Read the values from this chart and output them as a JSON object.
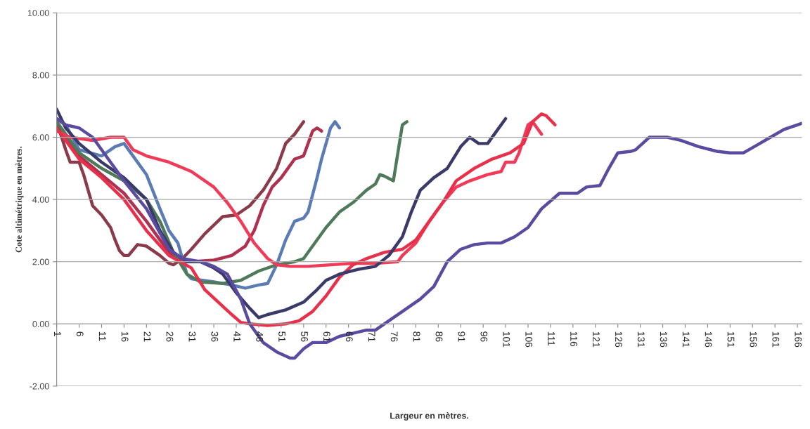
{
  "chart_data": {
    "type": "line",
    "xlabel": "Largeur en mètres.",
    "ylabel": "Cote altimétrique en mètres.",
    "xlim": [
      1,
      167
    ],
    "xticks": [
      1,
      6,
      11,
      16,
      21,
      26,
      31,
      36,
      41,
      46,
      51,
      56,
      61,
      66,
      71,
      76,
      81,
      86,
      91,
      96,
      101,
      106,
      111,
      116,
      121,
      126,
      131,
      136,
      141,
      146,
      151,
      156,
      161,
      166
    ],
    "ylim": [
      -2,
      10
    ],
    "yticks": [
      {
        "value": -2,
        "label": "-2.00"
      },
      {
        "value": 0,
        "label": "0.00"
      },
      {
        "value": 2,
        "label": "2.00"
      },
      {
        "value": 4,
        "label": "4.00"
      },
      {
        "value": 6,
        "label": "6.00"
      },
      {
        "value": 8,
        "label": "8.00"
      },
      {
        "value": 10,
        "label": "10.00"
      }
    ],
    "grid": "y",
    "legend": false,
    "series": [
      {
        "color": "#8b3a4a",
        "x": [
          1,
          3,
          4,
          6,
          7,
          9,
          11,
          13,
          14,
          15,
          16,
          17,
          19,
          21,
          24,
          26,
          27,
          29,
          31,
          34,
          38,
          41,
          44,
          47,
          50,
          52,
          54,
          56
        ],
        "values": [
          6.5,
          5.6,
          5.2,
          5.2,
          4.8,
          3.8,
          3.5,
          3.1,
          2.7,
          2.35,
          2.2,
          2.2,
          2.55,
          2.5,
          2.2,
          1.95,
          1.9,
          2.1,
          2.4,
          2.9,
          3.45,
          3.5,
          3.8,
          4.3,
          5.0,
          5.8,
          6.1,
          6.5
        ]
      },
      {
        "color": "#b03050",
        "x": [
          1,
          3,
          6,
          11,
          16,
          21,
          26,
          29,
          31,
          36,
          40,
          43,
          45,
          47,
          49,
          51,
          54,
          56,
          58,
          59,
          60
        ],
        "values": [
          6.3,
          6.0,
          5.4,
          4.8,
          4.2,
          3.3,
          2.3,
          2.0,
          2.0,
          2.05,
          2.2,
          2.5,
          3.0,
          3.8,
          4.4,
          4.7,
          5.3,
          5.4,
          6.2,
          6.3,
          6.2
        ]
      },
      {
        "color": "#5b7bb5",
        "x": [
          1,
          3,
          6,
          11,
          14,
          16,
          18,
          21,
          24,
          26,
          28,
          30,
          31,
          36,
          40,
          43,
          46,
          48,
          50,
          52,
          54,
          56,
          57,
          59,
          60,
          62,
          63,
          64
        ],
        "values": [
          6.6,
          6.4,
          5.6,
          5.4,
          5.7,
          5.8,
          5.4,
          4.8,
          3.7,
          3.0,
          2.6,
          1.6,
          1.45,
          1.35,
          1.25,
          1.15,
          1.25,
          1.3,
          1.9,
          2.7,
          3.3,
          3.4,
          3.6,
          4.7,
          5.3,
          6.3,
          6.5,
          6.3
        ]
      },
      {
        "color": "#4f7a5a",
        "x": [
          1,
          6,
          11,
          16,
          21,
          24,
          27,
          30,
          33,
          38,
          42,
          46,
          50,
          54,
          56,
          58,
          61,
          64,
          67,
          70,
          72,
          73,
          74,
          76,
          77,
          78,
          79
        ],
        "values": [
          6.5,
          5.5,
          5.0,
          4.6,
          4.0,
          3.3,
          2.3,
          1.6,
          1.35,
          1.3,
          1.4,
          1.7,
          1.9,
          2.0,
          2.1,
          2.5,
          3.1,
          3.6,
          3.9,
          4.3,
          4.5,
          4.8,
          4.75,
          4.6,
          5.5,
          6.4,
          6.5
        ]
      },
      {
        "color": "#f03a58",
        "x": [
          1,
          4,
          9,
          13,
          16,
          18,
          21,
          26,
          31,
          36,
          39,
          42,
          45,
          48,
          50,
          53,
          57,
          62,
          67,
          72,
          77,
          78,
          81,
          84,
          87,
          90,
          93,
          97,
          100,
          101,
          103,
          104,
          106,
          107,
          108,
          109
        ],
        "values": [
          6.2,
          6.0,
          5.9,
          6.0,
          6.0,
          5.6,
          5.4,
          5.2,
          4.9,
          4.4,
          3.9,
          3.3,
          2.6,
          2.1,
          1.9,
          1.85,
          1.85,
          1.9,
          1.95,
          1.95,
          2.0,
          2.2,
          2.6,
          3.3,
          3.9,
          4.4,
          4.6,
          4.8,
          4.9,
          5.2,
          5.2,
          5.5,
          6.4,
          6.5,
          6.3,
          6.1
        ]
      },
      {
        "color": "#e8304a",
        "x": [
          1,
          6,
          11,
          16,
          21,
          26,
          31,
          34,
          37,
          40,
          42,
          44,
          48,
          52,
          55,
          58,
          61,
          64,
          67,
          70,
          74,
          78,
          81,
          84,
          87,
          90,
          94,
          98,
          102,
          105,
          107,
          109,
          110,
          112
        ],
        "values": [
          6.3,
          5.3,
          4.7,
          4.0,
          3.0,
          2.2,
          1.8,
          1.1,
          0.7,
          0.3,
          0.05,
          0.0,
          -0.05,
          0.0,
          0.1,
          0.4,
          0.9,
          1.5,
          1.9,
          2.1,
          2.3,
          2.4,
          2.7,
          3.3,
          3.9,
          4.6,
          5.0,
          5.3,
          5.5,
          5.8,
          6.5,
          6.75,
          6.7,
          6.4
        ]
      },
      {
        "color": "#3a3a6a",
        "x": [
          1,
          3,
          6,
          11,
          16,
          21,
          24,
          27,
          30,
          33,
          36,
          38,
          41,
          44,
          46,
          48,
          52,
          56,
          59,
          61,
          64,
          68,
          72,
          75,
          78,
          80,
          82,
          85,
          88,
          91,
          93,
          95,
          97,
          99,
          101
        ],
        "values": [
          6.9,
          6.3,
          5.8,
          5.2,
          4.7,
          4.0,
          3.0,
          2.3,
          2.0,
          2.0,
          1.8,
          1.6,
          1.0,
          0.5,
          0.2,
          0.3,
          0.45,
          0.7,
          1.1,
          1.4,
          1.6,
          1.75,
          1.85,
          2.2,
          2.8,
          3.6,
          4.3,
          4.7,
          5.0,
          5.7,
          6.0,
          5.8,
          5.8,
          6.2,
          6.6
        ]
      },
      {
        "color": "#5a4aa0",
        "x": [
          1,
          3,
          6,
          9,
          13,
          16,
          21,
          26,
          29,
          33,
          36,
          39,
          42,
          44,
          47,
          50,
          53,
          54,
          56,
          58,
          61,
          64,
          67,
          70,
          72,
          75,
          78,
          82,
          85,
          88,
          91,
          94,
          97,
          100,
          103,
          106,
          109,
          113,
          117,
          119,
          122,
          124,
          126,
          129,
          130,
          133,
          137,
          140,
          144,
          148,
          151,
          154,
          157,
          160,
          163,
          166,
          167
        ],
        "values": [
          6.6,
          6.4,
          6.3,
          6.0,
          5.2,
          4.6,
          3.7,
          2.4,
          2.1,
          2.0,
          1.85,
          1.6,
          0.8,
          0.0,
          -0.6,
          -0.9,
          -1.1,
          -1.1,
          -0.8,
          -0.6,
          -0.6,
          -0.4,
          -0.3,
          -0.2,
          -0.2,
          0.1,
          0.4,
          0.8,
          1.2,
          2.0,
          2.4,
          2.55,
          2.6,
          2.6,
          2.8,
          3.1,
          3.7,
          4.2,
          4.2,
          4.4,
          4.45,
          5.0,
          5.5,
          5.55,
          5.6,
          6.0,
          6.0,
          5.9,
          5.7,
          5.55,
          5.5,
          5.5,
          5.75,
          6.0,
          6.25,
          6.4,
          6.45
        ]
      }
    ]
  }
}
